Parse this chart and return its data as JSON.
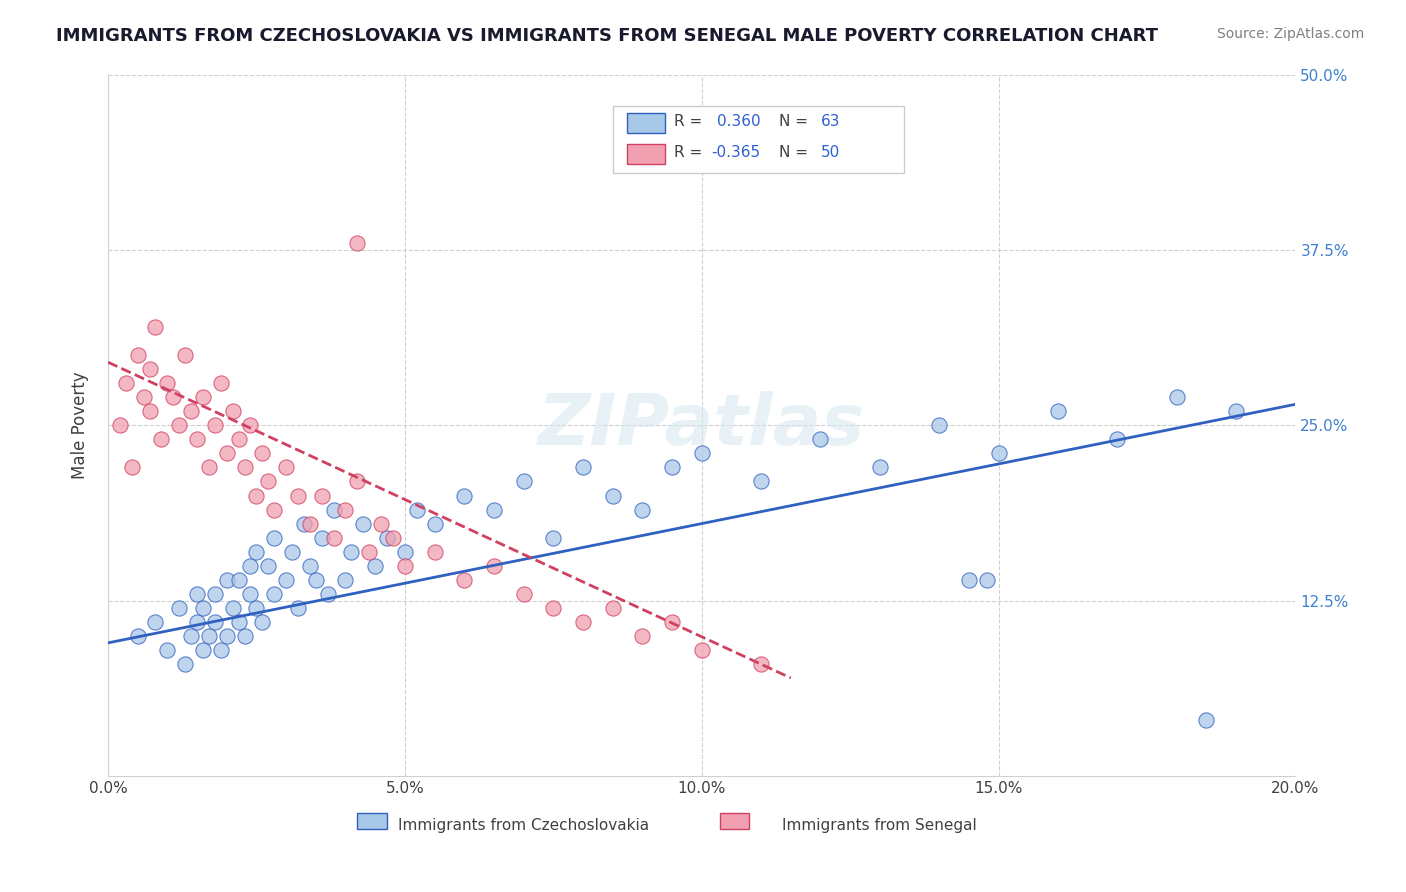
{
  "title": "IMMIGRANTS FROM CZECHOSLOVAKIA VS IMMIGRANTS FROM SENEGAL MALE POVERTY CORRELATION CHART",
  "source": "Source: ZipAtlas.com",
  "ylabel": "Male Poverty",
  "xlabel_ticks": [
    "0.0%",
    "5.0%",
    "10.0%",
    "15.0%",
    "20.0%"
  ],
  "ylabel_ticks": [
    "0.0%",
    "12.5%",
    "25.0%",
    "37.5%",
    "50.0%"
  ],
  "xlim": [
    0.0,
    0.2
  ],
  "ylim": [
    0.0,
    0.5
  ],
  "legend_r1": "R =  0.360",
  "legend_n1": "N = 63",
  "legend_r2": "R = -0.365",
  "legend_n2": "N = 50",
  "color_blue": "#a8c8e8",
  "color_pink": "#f0a0b0",
  "line_blue": "#3060c0",
  "line_pink": "#d04060",
  "watermark": "ZIPatlas",
  "background": "#ffffff",
  "grid_color": "#d0d0d0",
  "czech_x": [
    0.005,
    0.008,
    0.01,
    0.012,
    0.013,
    0.014,
    0.015,
    0.015,
    0.016,
    0.016,
    0.017,
    0.018,
    0.018,
    0.019,
    0.02,
    0.02,
    0.021,
    0.022,
    0.022,
    0.023,
    0.024,
    0.024,
    0.025,
    0.025,
    0.026,
    0.027,
    0.028,
    0.028,
    0.03,
    0.031,
    0.032,
    0.033,
    0.034,
    0.035,
    0.036,
    0.037,
    0.038,
    0.04,
    0.041,
    0.043,
    0.045,
    0.047,
    0.05,
    0.052,
    0.055,
    0.06,
    0.065,
    0.07,
    0.075,
    0.08,
    0.085,
    0.09,
    0.095,
    0.1,
    0.11,
    0.12,
    0.13,
    0.14,
    0.15,
    0.16,
    0.17,
    0.18,
    0.19
  ],
  "czech_y": [
    0.1,
    0.11,
    0.09,
    0.12,
    0.08,
    0.1,
    0.11,
    0.13,
    0.09,
    0.12,
    0.1,
    0.11,
    0.13,
    0.09,
    0.14,
    0.1,
    0.12,
    0.11,
    0.14,
    0.1,
    0.15,
    0.13,
    0.12,
    0.16,
    0.11,
    0.15,
    0.13,
    0.17,
    0.14,
    0.16,
    0.12,
    0.18,
    0.15,
    0.14,
    0.17,
    0.13,
    0.19,
    0.14,
    0.16,
    0.18,
    0.15,
    0.17,
    0.16,
    0.19,
    0.18,
    0.2,
    0.19,
    0.21,
    0.17,
    0.22,
    0.2,
    0.19,
    0.22,
    0.23,
    0.21,
    0.24,
    0.22,
    0.25,
    0.23,
    0.26,
    0.24,
    0.27,
    0.26
  ],
  "senegal_x": [
    0.002,
    0.003,
    0.004,
    0.005,
    0.006,
    0.007,
    0.007,
    0.008,
    0.009,
    0.01,
    0.011,
    0.012,
    0.013,
    0.014,
    0.015,
    0.016,
    0.017,
    0.018,
    0.019,
    0.02,
    0.021,
    0.022,
    0.023,
    0.024,
    0.025,
    0.026,
    0.027,
    0.028,
    0.03,
    0.032,
    0.034,
    0.036,
    0.038,
    0.04,
    0.042,
    0.044,
    0.046,
    0.048,
    0.05,
    0.055,
    0.06,
    0.065,
    0.07,
    0.075,
    0.08,
    0.085,
    0.09,
    0.095,
    0.1,
    0.11
  ],
  "senegal_y": [
    0.25,
    0.28,
    0.22,
    0.3,
    0.27,
    0.26,
    0.29,
    0.32,
    0.24,
    0.28,
    0.27,
    0.25,
    0.3,
    0.26,
    0.24,
    0.27,
    0.22,
    0.25,
    0.28,
    0.23,
    0.26,
    0.24,
    0.22,
    0.25,
    0.2,
    0.23,
    0.21,
    0.19,
    0.22,
    0.2,
    0.18,
    0.2,
    0.17,
    0.19,
    0.21,
    0.16,
    0.18,
    0.17,
    0.15,
    0.16,
    0.14,
    0.15,
    0.13,
    0.12,
    0.11,
    0.12,
    0.1,
    0.11,
    0.09,
    0.08
  ],
  "special_blue_points": [
    [
      0.145,
      0.14
    ],
    [
      0.148,
      0.14
    ],
    [
      0.185,
      0.04
    ]
  ],
  "special_pink_points": [
    [
      0.042,
      0.38
    ]
  ],
  "blue_trendline": [
    [
      0.0,
      0.095
    ],
    [
      0.2,
      0.265
    ]
  ],
  "pink_trendline": [
    [
      0.0,
      0.295
    ],
    [
      0.115,
      0.07
    ]
  ]
}
